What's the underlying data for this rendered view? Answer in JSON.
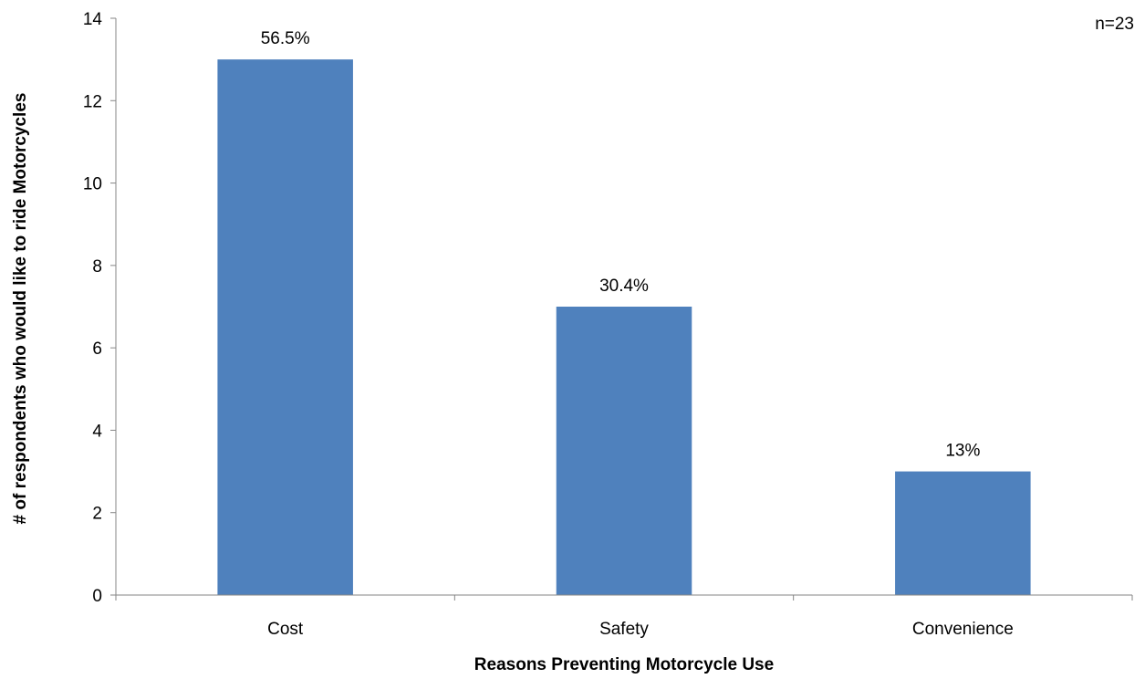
{
  "chart_data": {
    "type": "bar",
    "categories": [
      "Cost",
      "Safety",
      "Convenience"
    ],
    "values": [
      13,
      7,
      3
    ],
    "data_labels": [
      "56.5%",
      "30.4%",
      "13%"
    ],
    "annotation": "n=23",
    "xlabel": "Reasons Preventing Motorcycle Use",
    "ylabel": "# of respondents who would like to ride Motorcycles",
    "ylim": [
      0,
      14
    ],
    "yticks": [
      0,
      2,
      4,
      6,
      8,
      10,
      12,
      14
    ],
    "grid": false,
    "legend": "none",
    "bar_color": "#4F81BD"
  }
}
